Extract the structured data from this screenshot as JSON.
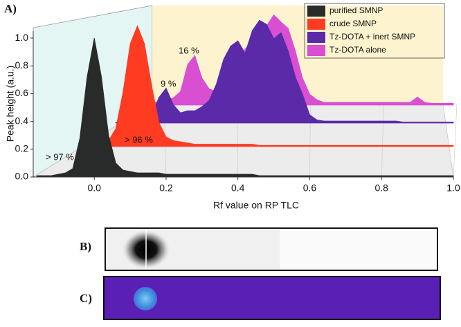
{
  "panel_labels": [
    "A)",
    "B)",
    "C)"
  ],
  "chart_data": {
    "type": "waterfall-area",
    "x_label": "Rf value on RP TLC",
    "y_label": "Peak height (a.u.)",
    "xlim": [
      -0.17,
      1.0
    ],
    "ylim": [
      0,
      1.05
    ],
    "xticks": [
      {
        "value": 0,
        "label": "0.0"
      },
      {
        "value": 0.2,
        "label": "0.2"
      },
      {
        "value": 0.4,
        "label": "0.4"
      },
      {
        "value": 0.6,
        "label": "0.6"
      },
      {
        "value": 0.8,
        "label": "0.8"
      },
      {
        "value": 1,
        "label": "1.0"
      }
    ],
    "yticks": [
      {
        "value": 0,
        "label": "0.0"
      },
      {
        "value": 0.2,
        "label": "0.2"
      },
      {
        "value": 0.4,
        "label": "0.4"
      },
      {
        "value": 0.6,
        "label": "0.6"
      },
      {
        "value": 0.8,
        "label": "0.8"
      },
      {
        "value": 1,
        "label": "1.0"
      }
    ],
    "legend": "upper right",
    "x": [
      -0.16,
      -0.14,
      -0.12,
      -0.1,
      -0.08,
      -0.06,
      -0.04,
      -0.02,
      0,
      0.02,
      0.04,
      0.06,
      0.08,
      0.1,
      0.12,
      0.14,
      0.16,
      0.18,
      0.2,
      0.22,
      0.24,
      0.26,
      0.28,
      0.3,
      0.32,
      0.34,
      0.36,
      0.38,
      0.4,
      0.42,
      0.44,
      0.46,
      0.48,
      0.5,
      0.52,
      0.54,
      0.56,
      0.58,
      0.6,
      0.62,
      0.64,
      0.66,
      0.68,
      0.7,
      0.72,
      0.74,
      0.76,
      0.78,
      0.8,
      0.82,
      0.84,
      0.86,
      0.88,
      0.9,
      0.92,
      0.94,
      0.96,
      0.98,
      1.0
    ],
    "series": [
      {
        "name": "purified SMNP",
        "color": "#282b29",
        "values": [
          0.01,
          0.01,
          0.01,
          0.02,
          0.03,
          0.06,
          0.28,
          0.72,
          1.0,
          0.72,
          0.3,
          0.1,
          0.05,
          0.04,
          0.03,
          0.03,
          0.03,
          0.03,
          0.02,
          0.02,
          0.02,
          0.02,
          0.02,
          0.02,
          0.02,
          0.02,
          0.02,
          0.02,
          0.02,
          0.02,
          0.02,
          0.01,
          0.01,
          0.01,
          0.01,
          0.01,
          0.01,
          0.01,
          0.01,
          0.01,
          0.01,
          0.01,
          0.01,
          0.01,
          0.01,
          0.01,
          0.01,
          0.01,
          0.01,
          0.01,
          0.01,
          0.01,
          0.01,
          0.01,
          0.01,
          0.01,
          0.01,
          0.01,
          0.01
        ]
      },
      {
        "name": "crude SMNP",
        "color": "#ff3b22",
        "values": [
          null,
          null,
          null,
          null,
          null,
          null,
          null,
          0.01,
          0.01,
          0.02,
          0.05,
          0.15,
          0.45,
          0.85,
          1.0,
          0.85,
          0.5,
          0.2,
          0.08,
          0.05,
          0.04,
          0.03,
          0.02,
          0.02,
          0.02,
          0.02,
          0.02,
          0.02,
          0.02,
          0.02,
          0.02,
          0.01,
          0.01,
          0.01,
          0.01,
          0.01,
          0.01,
          0.01,
          0.01,
          0.01,
          0.01,
          0.01,
          0.01,
          0.01,
          0.01,
          0.01,
          0.01,
          0.01,
          0.01,
          0.01,
          0.01,
          0.01,
          0.01,
          0.01,
          0.01,
          0.01,
          0.01,
          0.01,
          0.01
        ]
      },
      {
        "name": "Tz-DOTA + inert SMNP",
        "color": "#5a2aa8",
        "values": [
          null,
          null,
          null,
          null,
          null,
          null,
          null,
          null,
          null,
          null,
          null,
          0.01,
          0.01,
          0.02,
          0.03,
          0.04,
          0.08,
          0.25,
          0.34,
          0.18,
          0.1,
          0.12,
          0.12,
          0.16,
          0.22,
          0.38,
          0.62,
          0.75,
          0.8,
          0.68,
          0.9,
          1.0,
          0.96,
          0.82,
          0.88,
          0.7,
          0.45,
          0.28,
          0.08,
          0.03,
          0.02,
          0.02,
          0.02,
          0.02,
          0.02,
          0.02,
          0.02,
          0.02,
          0.02,
          0.02,
          0.02,
          0.01,
          0.01,
          0.01,
          0.01,
          0.01,
          0.01,
          0.01,
          0.01
        ]
      },
      {
        "name": "Tz-DOTA alone",
        "color": "#d94fd1",
        "values": [
          null,
          null,
          null,
          null,
          null,
          null,
          null,
          null,
          null,
          null,
          null,
          null,
          null,
          null,
          0.01,
          0.01,
          0.02,
          0.04,
          0.06,
          0.08,
          0.15,
          0.45,
          0.55,
          0.3,
          0.18,
          0.15,
          0.2,
          0.35,
          0.5,
          0.62,
          0.72,
          0.8,
          0.88,
          1.0,
          0.92,
          0.85,
          0.6,
          0.3,
          0.12,
          0.06,
          0.03,
          0.03,
          0.03,
          0.03,
          0.03,
          0.03,
          0.03,
          0.03,
          0.03,
          0.03,
          0.03,
          0.03,
          0.03,
          0.09,
          0.03,
          0.02,
          0.02,
          0.02,
          0.02
        ]
      }
    ],
    "annotations": [
      "> 97 %",
      "> 96 %",
      "9 %",
      "16 %"
    ]
  }
}
